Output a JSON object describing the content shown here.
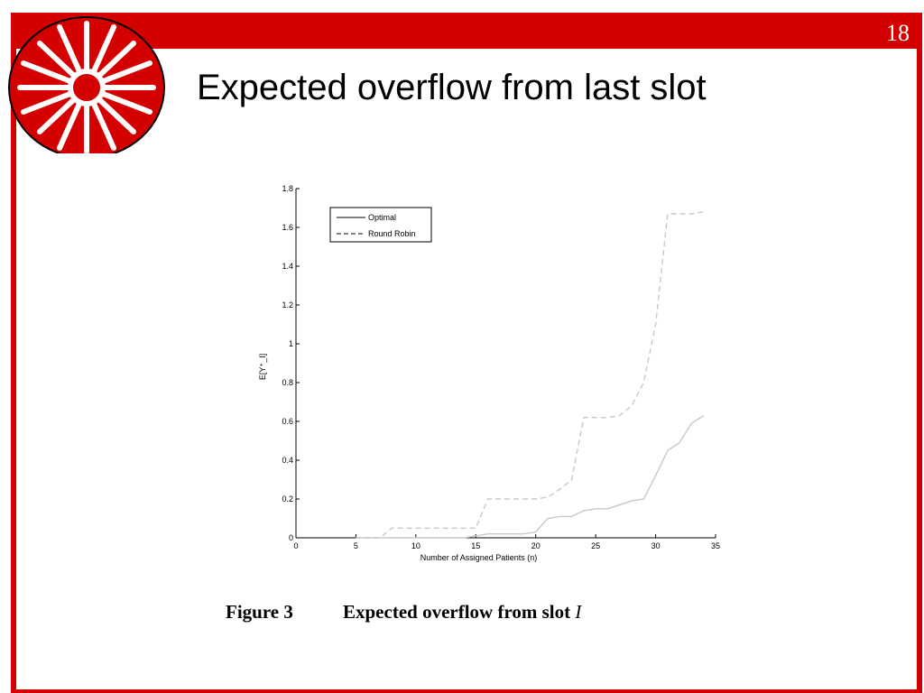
{
  "slide": {
    "number": "18",
    "title": "Expected overflow from last slot"
  },
  "colors": {
    "accent": "#d40000",
    "series": "#c8c8c8",
    "axis": "#000000"
  },
  "logo": {
    "icon": "starburst-logo-icon"
  },
  "caption": {
    "label": "Figure 3",
    "text": "Expected overflow from slot",
    "variable": "I"
  },
  "chart_data": {
    "type": "line",
    "xlabel": "Number of Assigned Patients (n)",
    "ylabel": "E[Y⁺_I]",
    "xlim": [
      0,
      35
    ],
    "ylim": [
      0,
      1.8
    ],
    "xticks": [
      0,
      5,
      10,
      15,
      20,
      25,
      30,
      35
    ],
    "yticks": [
      0,
      0.2,
      0.4,
      0.6,
      0.8,
      1,
      1.2,
      1.4,
      1.6,
      1.8
    ],
    "ytick_labels": [
      "0",
      "0.2",
      "0.4",
      "0.6",
      "0.8",
      "1",
      "1.2",
      "1.4",
      "1.6",
      "1.8"
    ],
    "grid": false,
    "legend_position": "top-left",
    "series": [
      {
        "name": "Optimal",
        "style": "solid",
        "x": [
          5,
          7,
          10,
          14,
          15,
          16,
          18,
          19,
          20,
          21,
          22,
          23,
          24,
          25,
          26,
          27,
          28,
          29,
          30,
          31,
          32,
          33,
          34
        ],
        "y": [
          0,
          0,
          0,
          0,
          0.01,
          0.02,
          0.02,
          0.02,
          0.03,
          0.1,
          0.11,
          0.11,
          0.14,
          0.15,
          0.15,
          0.17,
          0.19,
          0.2,
          0.32,
          0.45,
          0.49,
          0.59,
          0.63
        ]
      },
      {
        "name": "Round Robin",
        "style": "dashed",
        "x": [
          5,
          7,
          8,
          10,
          14,
          15,
          16,
          17,
          19,
          20,
          21,
          22,
          23,
          24,
          25,
          26,
          27,
          28,
          29,
          30,
          31,
          32,
          33,
          34
        ],
        "y": [
          0,
          0,
          0.05,
          0.05,
          0.05,
          0.05,
          0.2,
          0.2,
          0.2,
          0.2,
          0.21,
          0.25,
          0.3,
          0.62,
          0.62,
          0.62,
          0.63,
          0.68,
          0.8,
          1.1,
          1.67,
          1.67,
          1.67,
          1.68
        ]
      }
    ]
  }
}
